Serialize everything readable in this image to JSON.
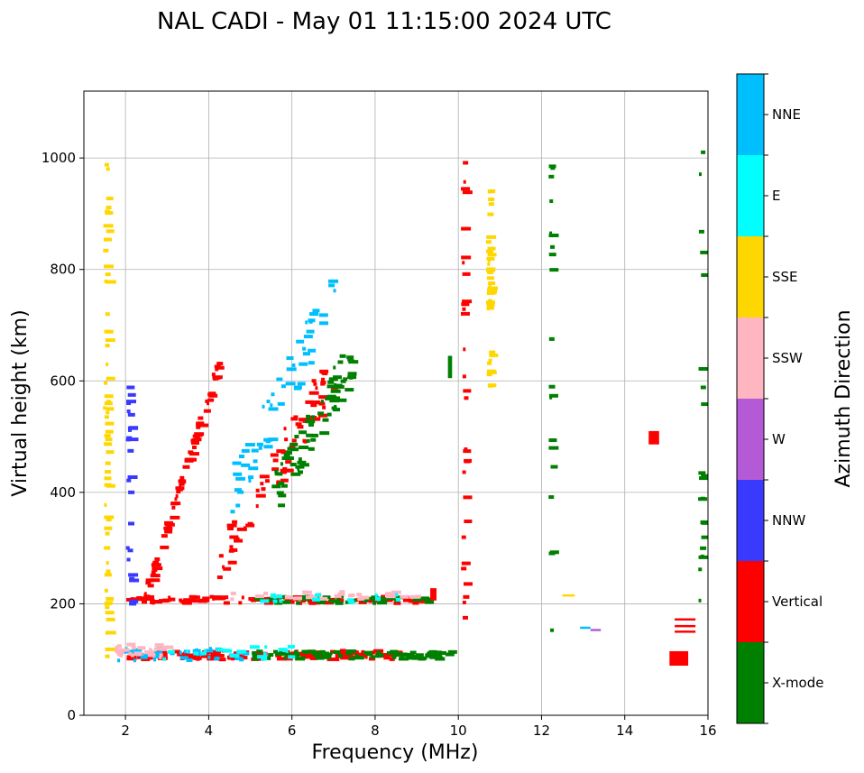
{
  "chart_data": {
    "type": "scatter",
    "title": "NAL CADI - May 01 11:15:00 2024 UTC",
    "xlabel": "Frequency (MHz)",
    "ylabel": "Virtual height (km)",
    "xlim": [
      1.0,
      16.0
    ],
    "ylim": [
      0,
      1120
    ],
    "xticks": [
      2,
      4,
      6,
      8,
      10,
      12,
      14,
      16
    ],
    "yticks": [
      0,
      200,
      400,
      600,
      800,
      1000
    ],
    "grid": true,
    "colorbar": {
      "label": "Azimuth Direction",
      "categories": [
        {
          "name": "X-mode",
          "color": "#008000"
        },
        {
          "name": "Vertical",
          "color": "#ff0000"
        },
        {
          "name": "NNW",
          "color": "#3a3aff"
        },
        {
          "name": "W",
          "color": "#b45ad6"
        },
        {
          "name": "SSW",
          "color": "#ffb6c1"
        },
        {
          "name": "SSE",
          "color": "#ffd700"
        },
        {
          "name": "E",
          "color": "#00ffff"
        },
        {
          "name": "NNE",
          "color": "#00bfff"
        }
      ]
    },
    "traces": [
      {
        "dir": "Vertical",
        "f0": 2.0,
        "f1": 8.5,
        "h": 108,
        "n": 150,
        "jit": 8
      },
      {
        "dir": "X-mode",
        "f0": 5.0,
        "f1": 9.8,
        "h": 108,
        "n": 90,
        "jit": 7
      },
      {
        "dir": "NNE",
        "f0": 1.8,
        "f1": 5.0,
        "h": 110,
        "n": 35,
        "jit": 12
      },
      {
        "dir": "SSW",
        "f0": 1.7,
        "f1": 3.0,
        "h": 115,
        "n": 25,
        "jit": 12
      },
      {
        "dir": "E",
        "f0": 2.5,
        "f1": 6.0,
        "h": 112,
        "n": 20,
        "jit": 12
      },
      {
        "dir": "Vertical",
        "f0": 2.0,
        "f1": 9.3,
        "h": 207,
        "n": 110,
        "jit": 6
      },
      {
        "dir": "X-mode",
        "f0": 5.0,
        "f1": 9.2,
        "h": 207,
        "n": 50,
        "jit": 6
      },
      {
        "dir": "SSW",
        "f0": 4.5,
        "f1": 9.2,
        "h": 215,
        "n": 30,
        "jit": 7
      },
      {
        "dir": "E",
        "f0": 5.0,
        "f1": 9.0,
        "h": 210,
        "n": 15,
        "jit": 7
      },
      {
        "dir": "Vertical",
        "f0": 2.4,
        "f1": 4.2,
        "h0": 210,
        "h1": 630,
        "n": 80,
        "jit": 12
      },
      {
        "dir": "Vertical",
        "f0": 4.2,
        "f1": 7.0,
        "h0": 280,
        "h1": 620,
        "n": 75,
        "jit": 45
      },
      {
        "dir": "NNE",
        "f0": 4.5,
        "f1": 7.0,
        "h0": 400,
        "h1": 760,
        "n": 55,
        "jit": 45
      },
      {
        "dir": "X-mode",
        "f0": 5.5,
        "f1": 7.4,
        "h0": 390,
        "h1": 640,
        "n": 75,
        "jit": 40
      },
      {
        "dir": "SSE",
        "f0": 1.5,
        "f1": 1.5,
        "h0": 100,
        "h1": 1005,
        "n": 60,
        "jit": 4
      },
      {
        "dir": "NNW",
        "f0": 2.05,
        "f1": 2.05,
        "h0": 200,
        "h1": 590,
        "n": 25,
        "jit": 3
      },
      {
        "dir": "SSE",
        "f0": 10.7,
        "f1": 10.7,
        "h0": 590,
        "h1": 950,
        "n": 40,
        "jit": 3
      },
      {
        "dir": "Vertical",
        "f0": 10.1,
        "f1": 10.1,
        "h0": 160,
        "h1": 1015,
        "n": 30,
        "jit": 3
      },
      {
        "dir": "X-mode",
        "f0": 15.8,
        "f1": 15.8,
        "h0": 150,
        "h1": 1015,
        "n": 22,
        "jit": 3
      },
      {
        "dir": "X-mode",
        "f0": 12.2,
        "f1": 12.2,
        "h0": 150,
        "h1": 1015,
        "n": 20,
        "jit": 3
      }
    ],
    "blocks": [
      {
        "dir": "Vertical",
        "f": 15.3,
        "h": 102,
        "df": 0.45,
        "dh": 26
      },
      {
        "dir": "Vertical",
        "f": 15.45,
        "h": 172,
        "df": 0.5,
        "dh": 4
      },
      {
        "dir": "Vertical",
        "f": 15.45,
        "h": 160,
        "df": 0.5,
        "dh": 4
      },
      {
        "dir": "Vertical",
        "f": 15.45,
        "h": 150,
        "df": 0.5,
        "dh": 4
      },
      {
        "dir": "Vertical",
        "f": 14.7,
        "h": 498,
        "df": 0.25,
        "dh": 24
      },
      {
        "dir": "NNE",
        "f": 13.05,
        "h": 157,
        "df": 0.25,
        "dh": 4
      },
      {
        "dir": "W",
        "f": 13.3,
        "h": 153,
        "df": 0.25,
        "dh": 4
      },
      {
        "dir": "SSE",
        "f": 12.65,
        "h": 215,
        "df": 0.3,
        "dh": 4
      },
      {
        "dir": "X-mode",
        "f": 9.4,
        "h": 108,
        "df": 0.4,
        "dh": 6
      },
      {
        "dir": "Vertical",
        "f": 9.4,
        "h": 217,
        "df": 0.15,
        "dh": 22
      },
      {
        "dir": "X-mode",
        "f": 9.8,
        "h": 625,
        "df": 0.1,
        "dh": 40
      }
    ]
  }
}
